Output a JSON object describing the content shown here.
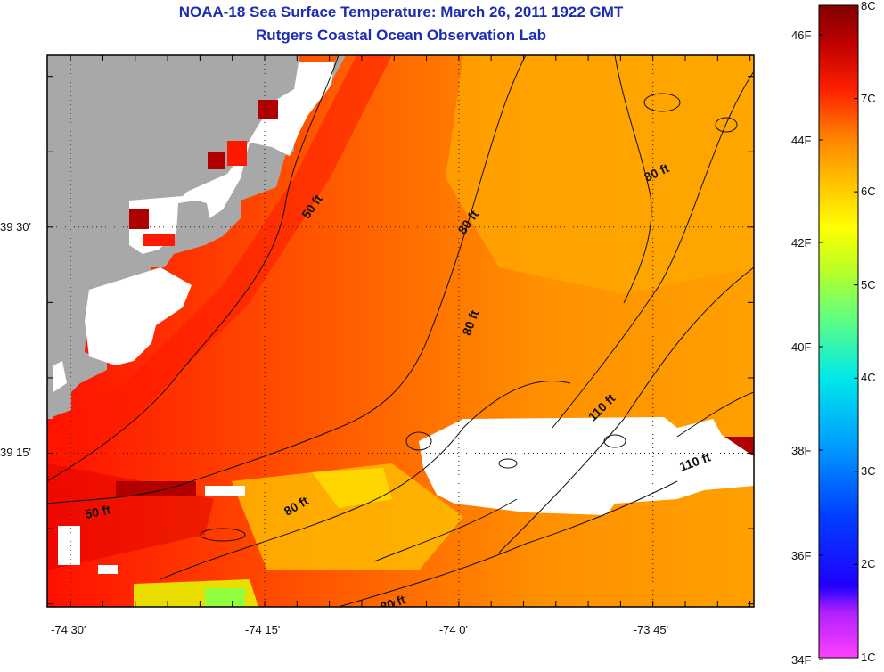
{
  "header": {
    "title": "NOAA-18 Sea Surface Temperature:  March 26, 2011 1922 GMT",
    "subtitle": "Rutgers Coastal Ocean Observation Lab"
  },
  "map": {
    "lon_range": [
      -74.53,
      -73.62
    ],
    "lat_range": [
      39.08,
      39.69
    ],
    "lon_ticks": [
      {
        "value": -74.5,
        "label": "-74 30'"
      },
      {
        "value": -74.25,
        "label": "-74 15'"
      },
      {
        "value": -74.0,
        "label": "-74 0'"
      },
      {
        "value": -73.75,
        "label": "-73 45'"
      }
    ],
    "lat_ticks": [
      {
        "value": 39.5,
        "label": "39 30'"
      },
      {
        "value": 39.25,
        "label": "39 15'"
      }
    ],
    "gridlines": "dotted",
    "land_color": "#a8a8a8",
    "no_data_color": "#ffffff",
    "depth_labels": [
      "50 ft",
      "50 ft",
      "80 ft",
      "80 ft",
      "80 ft",
      "80 ft",
      "80 ft",
      "110 ft",
      "110 ft"
    ]
  },
  "colorbar": {
    "celsius_labels": [
      "8C",
      "7C",
      "6C",
      "5C",
      "4C",
      "3C",
      "2C",
      "1C"
    ],
    "fahrenheit_labels": [
      "46F",
      "44F",
      "42F",
      "40F",
      "38F",
      "36F",
      "34F"
    ],
    "colors": [
      "#ff40ff",
      "#8020ff",
      "#0000ff",
      "#0080ff",
      "#00e0ff",
      "#20ffc0",
      "#80ff40",
      "#e0ff00",
      "#ffe000",
      "#ffa000",
      "#ff6000",
      "#ff1000",
      "#c00000",
      "#800000"
    ]
  }
}
